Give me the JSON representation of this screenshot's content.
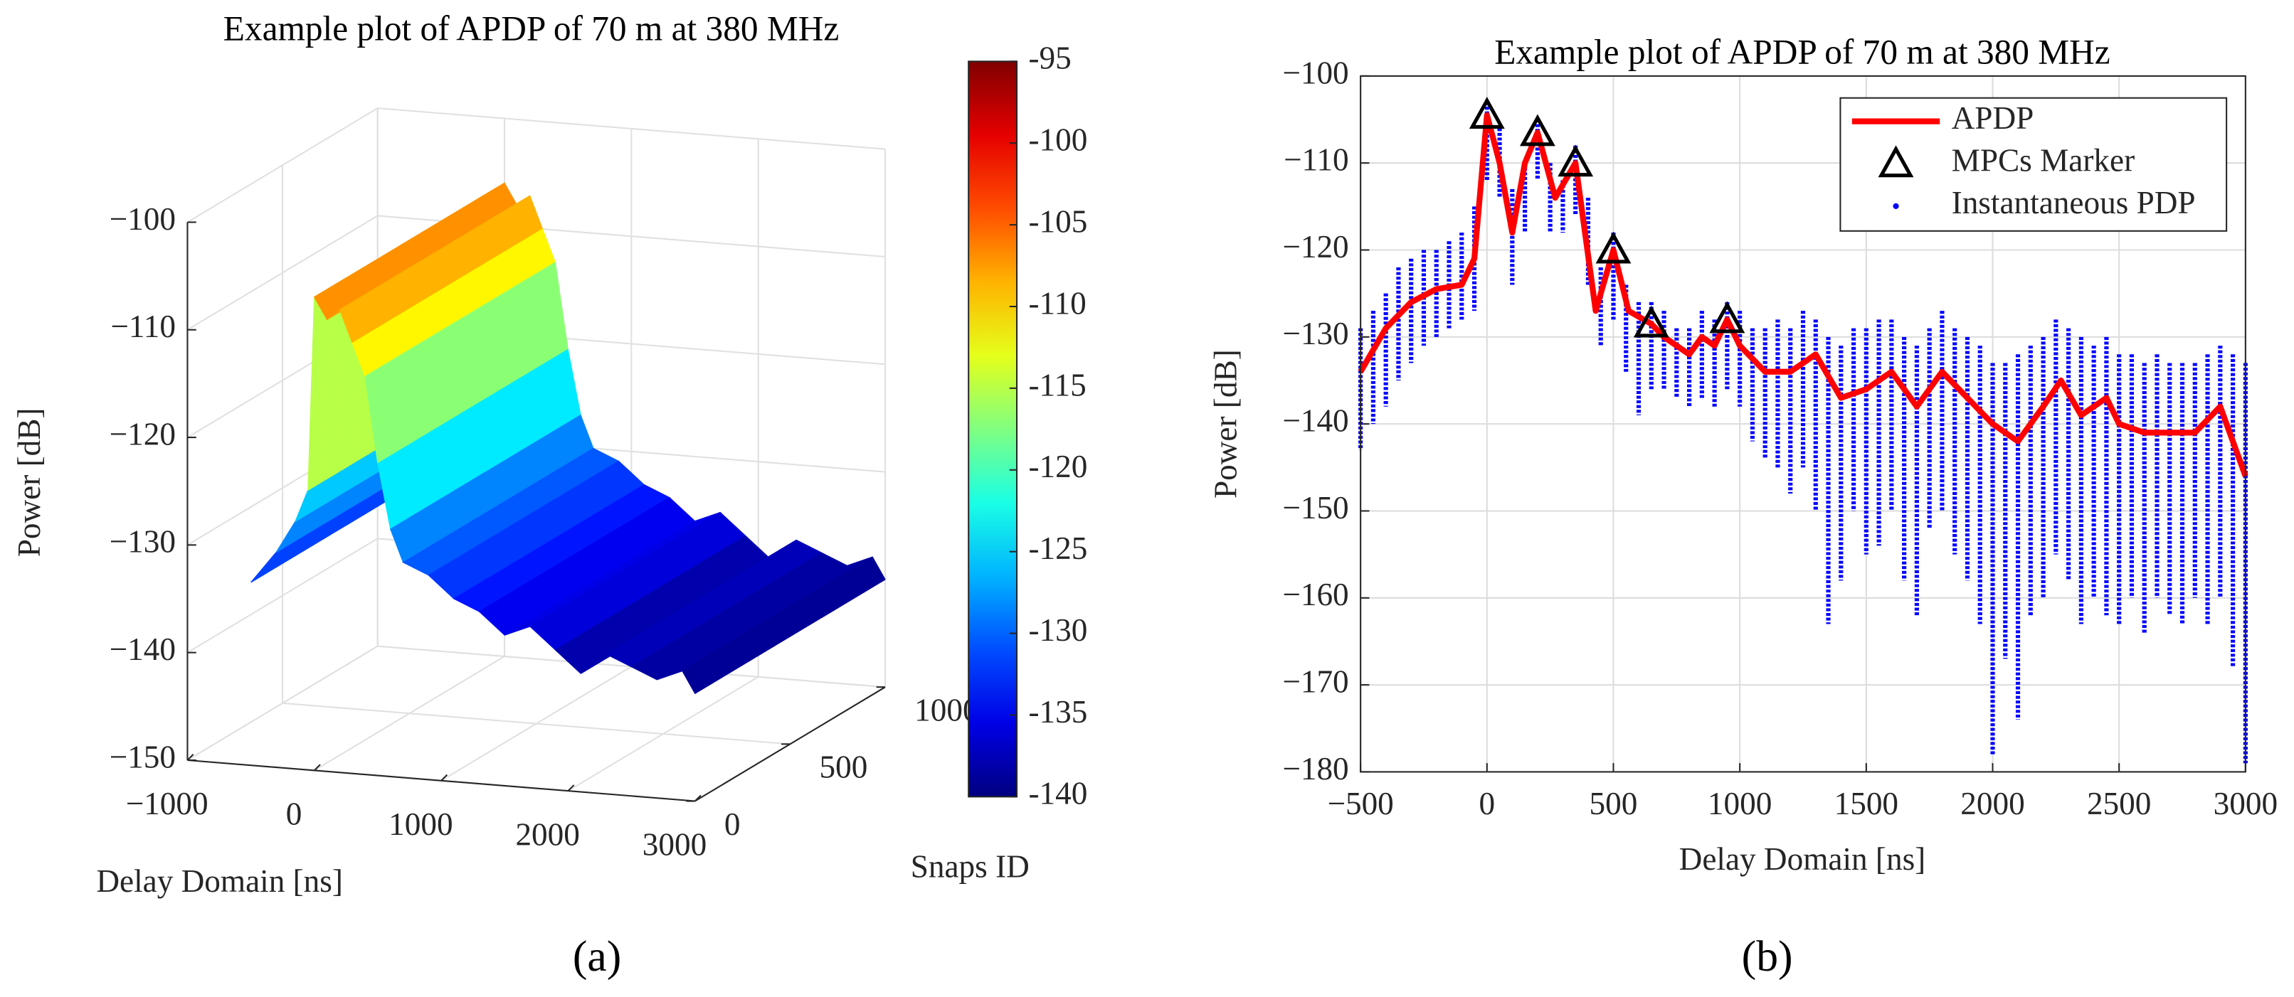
{
  "chart_data": [
    {
      "type": "surface3d",
      "panel_label": "(a)",
      "title": "Example plot of APDP of 70 m at 380 MHz",
      "xlabel": "Delay Domain [ns]",
      "ylabel": "Snaps ID",
      "zlabel": "Power [dB]",
      "x": [
        -500,
        -300,
        -150,
        -50,
        0,
        100,
        200,
        300,
        400,
        500,
        600,
        700,
        900,
        1100,
        1300,
        1500,
        1700,
        1900,
        2100,
        2300,
        2500,
        2700,
        2900,
        3000
      ],
      "values": [
        -133,
        -130,
        -127,
        -124,
        -106,
        -108,
        -107,
        -110,
        -113,
        -121,
        -127,
        -130,
        -131,
        -133,
        -134,
        -136,
        -135,
        -137,
        -139,
        -137,
        -138,
        -139,
        -138,
        -140
      ],
      "xlim": [
        -1000,
        3000
      ],
      "xticks": [
        {
          "value": -1000,
          "label": "−1000"
        },
        0,
        1000,
        2000,
        3000
      ],
      "ylim": [
        0,
        1000
      ],
      "yticks": [
        0,
        500,
        1000
      ],
      "zlim": [
        -150,
        -100
      ],
      "zticks": [
        {
          "value": -150,
          "label": "−150"
        },
        {
          "value": -140,
          "label": "−140"
        },
        {
          "value": -130,
          "label": "−130"
        },
        {
          "value": -120,
          "label": "−120"
        },
        {
          "value": -110,
          "label": "−110"
        },
        {
          "value": -100,
          "label": "−100"
        }
      ],
      "colormap": "jet",
      "clim": [
        -140,
        -95
      ],
      "cticks": [
        -95,
        -100,
        -105,
        -110,
        -115,
        -120,
        -125,
        -130,
        -135,
        -140
      ],
      "grid": true
    },
    {
      "type": "line",
      "panel_label": "(b)",
      "title": "Example plot of APDP of 70 m at 380 MHz",
      "xlabel": "Delay Domain [ns]",
      "ylabel": "Power [dB]",
      "xlim": [
        -500,
        3000
      ],
      "xticks": [
        {
          "value": -500,
          "label": "−500"
        },
        0,
        500,
        1000,
        1500,
        2000,
        2500,
        3000
      ],
      "ylim": [
        -180,
        -100
      ],
      "yticks": [
        {
          "value": -100,
          "label": "−100"
        },
        {
          "value": -110,
          "label": "−110"
        },
        {
          "value": -120,
          "label": "−120"
        },
        {
          "value": -130,
          "label": "−130"
        },
        {
          "value": -140,
          "label": "−140"
        },
        {
          "value": -150,
          "label": "−150"
        },
        {
          "value": -160,
          "label": "−160"
        },
        {
          "value": -170,
          "label": "−170"
        },
        {
          "value": -180,
          "label": "−180"
        }
      ],
      "grid": true,
      "legend": "upper right",
      "series": [
        {
          "name": "Instantaneous PDP",
          "type": "range",
          "color": "#0000ff",
          "x": [
            -500,
            -450,
            -400,
            -350,
            -300,
            -250,
            -200,
            -150,
            -100,
            -50,
            0,
            50,
            100,
            150,
            200,
            250,
            300,
            350,
            400,
            450,
            500,
            550,
            600,
            650,
            700,
            750,
            800,
            850,
            900,
            950,
            1000,
            1050,
            1100,
            1150,
            1200,
            1250,
            1300,
            1350,
            1400,
            1450,
            1500,
            1550,
            1600,
            1650,
            1700,
            1750,
            1800,
            1850,
            1900,
            1950,
            2000,
            2050,
            2100,
            2150,
            2200,
            2250,
            2300,
            2350,
            2400,
            2450,
            2500,
            2550,
            2600,
            2650,
            2700,
            2750,
            2800,
            2850,
            2900,
            2950,
            3000
          ],
          "values": [
            -129,
            -127,
            -125,
            -122,
            -121,
            -120,
            -120,
            -119,
            -118,
            -115,
            -103,
            -106,
            -113,
            -110,
            -105,
            -110,
            -112,
            -108,
            -114,
            -122,
            -118,
            -124,
            -126,
            -126,
            -127,
            -129,
            -129,
            -127,
            -128,
            -126,
            -127,
            -129,
            -129,
            -128,
            -129,
            -127,
            -128,
            -130,
            -131,
            -129,
            -129,
            -128,
            -128,
            -130,
            -131,
            -129,
            -127,
            -129,
            -130,
            -131,
            -133,
            -133,
            -132,
            -131,
            -130,
            -128,
            -129,
            -130,
            -131,
            -130,
            -132,
            -132,
            -133,
            -132,
            -133,
            -133,
            -133,
            -132,
            -131,
            -132,
            -133
          ],
          "values_low": [
            -143,
            -140,
            -138,
            -135,
            -133,
            -131,
            -130,
            -129,
            -128,
            -127,
            -112,
            -114,
            -124,
            -118,
            -112,
            -118,
            -118,
            -116,
            -124,
            -131,
            -128,
            -134,
            -139,
            -136,
            -136,
            -137,
            -138,
            -137,
            -138,
            -136,
            -138,
            -142,
            -144,
            -145,
            -148,
            -145,
            -150,
            -163,
            -158,
            -150,
            -155,
            -154,
            -150,
            -158,
            -162,
            -152,
            -150,
            -155,
            -158,
            -163,
            -178,
            -167,
            -174,
            -162,
            -160,
            -155,
            -158,
            -163,
            -160,
            -162,
            -163,
            -160,
            -164,
            -160,
            -162,
            -163,
            -160,
            -163,
            -160,
            -168,
            -179
          ]
        },
        {
          "name": "APDP",
          "type": "line",
          "color": "#ff0000",
          "x": [
            -500,
            -400,
            -300,
            -200,
            -100,
            -50,
            0,
            50,
            100,
            150,
            200,
            270,
            350,
            430,
            500,
            560,
            650,
            700,
            800,
            850,
            900,
            950,
            1000,
            1100,
            1200,
            1300,
            1400,
            1500,
            1600,
            1700,
            1800,
            1900,
            2000,
            2100,
            2200,
            2270,
            2350,
            2450,
            2500,
            2600,
            2700,
            2800,
            2900,
            3000
          ],
          "values": [
            -134,
            -129,
            -126,
            -124.5,
            -124,
            -121,
            -104.5,
            -110,
            -118,
            -110,
            -106.5,
            -114,
            -110,
            -127,
            -120,
            -127,
            -128.5,
            -130,
            -132,
            -130,
            -131,
            -128,
            -131,
            -134,
            -134,
            -132,
            -137,
            -136,
            -134,
            -138,
            -134,
            -137,
            -140,
            -142,
            -138,
            -135,
            -139,
            -137,
            -140,
            -141,
            -141,
            -141,
            -138,
            -146
          ]
        },
        {
          "name": "MPCs Marker",
          "type": "marker",
          "color": "#000000",
          "x": [
            0,
            200,
            350,
            500,
            650,
            950
          ],
          "values": [
            -104.5,
            -106.5,
            -110,
            -120,
            -128.5,
            -128
          ]
        }
      ]
    }
  ]
}
